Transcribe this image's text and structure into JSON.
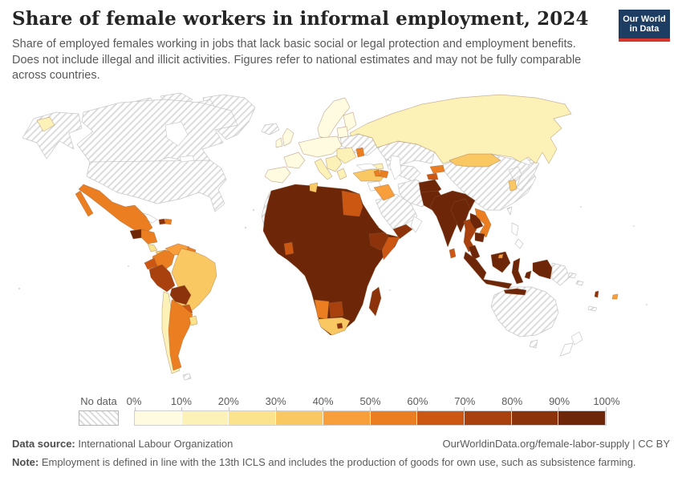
{
  "header": {
    "title": "Share of female workers in informal employment, 2024",
    "subtitle_lines": {
      "line1": "Share of employed females working in jobs that lack basic social or legal protection and employment benefits.",
      "line2": "Does not include illegal and illicit activities. Figures refer to national estimates and may not be fully comparable",
      "line3": "across countries."
    },
    "logo": {
      "line1": "Our World",
      "line2": "in Data",
      "bg": "#1d3d63",
      "accent": "#d7372c"
    }
  },
  "legend": {
    "no_data_label": "No data",
    "tick_labels": [
      "0%",
      "10%",
      "20%",
      "30%",
      "40%",
      "50%",
      "60%",
      "70%",
      "80%",
      "90%",
      "100%"
    ],
    "bin_colors": [
      "#FEFBE0",
      "#FCF2B7",
      "#FBE38D",
      "#FAC863",
      "#F89E3B",
      "#EA7E20",
      "#CC5713",
      "#A8410E",
      "#8C330B",
      "#6D2608"
    ]
  },
  "footer": {
    "source_label": "Data source:",
    "source_value": " International Labour Organization",
    "rights": "OurWorldinData.org/female-labor-supply | CC BY",
    "note_label": "Note:",
    "note_value": " Employment is defined in line with the 13th ICLS and includes the production of goods for own use, such as subsistence farming."
  },
  "map": {
    "ocean": "#ffffff",
    "country_border": "#8b5e3c",
    "no_data_border": "#c6c6c6",
    "water_border": "#cfcfcf",
    "hatch_line": "#dcdcdc",
    "regions": {
      "greenland": "no-data",
      "iceland": "no-data",
      "arctic-islands": "no-data",
      "alaska": "no-data",
      "canada": "no-data",
      "usa": "no-data",
      "ukraine-belarus": "no-data",
      "kazakhstan": "no-data",
      "central-asia": "no-data",
      "iran": "no-data",
      "saudi-arabia": "no-data",
      "china": "no-data",
      "japan": "no-data",
      "north-korea": "no-data",
      "taiwan": "no-data",
      "australia": "no-data",
      "tasmania": "no-data",
      "png": "no-data",
      "north-africa": "no-data",
      "south-sudan": "no-data",
      "eritrea": "no-data",
      "falklands": "no-data",
      "new-caledonia": "no-data",
      "solomon": "no-data",
      "new-zealand": "none",
      "philippines": "none",
      "cuba": "none",
      "syria": "none",
      "oman": "none",
      "suriname": "none",
      "caspian": "water",
      "black-sea": "water",
      "hudson-bay": "water",
      "great-lakes": "water",
      "chukotka": 2,
      "russia": 2,
      "scandinavia": 1,
      "finland": 1,
      "uk": 1,
      "ireland": 1,
      "iberia": 1,
      "france": 1,
      "central-europe": 1,
      "baltics": 1,
      "italy": 2,
      "balkans": 2,
      "romania-bulgaria": 2,
      "greece": 2,
      "georgia": 2,
      "moldova": 6,
      "turkey": 4,
      "armenia": 6,
      "azerbaijan": 6,
      "iraq": 5,
      "yemen": 9,
      "afghanistan": 10,
      "pakistan": 10,
      "india": 10,
      "sri-lanka": 7,
      "kyrgyzstan": 6,
      "tajikistan": 7,
      "mongolia": 4,
      "south-korea": 4,
      "myanmar": 10,
      "thailand": 8,
      "laos": 10,
      "vietnam": 6,
      "cambodia": 10,
      "malay-peninsula": 10,
      "sumatra": 10,
      "java": 10,
      "borneo": 10,
      "sulawesi": 10,
      "lesser-sunda": 10,
      "maluku": 10,
      "west-papua": 10,
      "brunei": 5,
      "mexico": 6,
      "guatemala": 10,
      "honduras-nicaragua": 6,
      "costa-rica": 3,
      "panama": 4,
      "haiti": 9,
      "dominican-republic": 6,
      "colombia": 6,
      "venezuela": 5,
      "guyana": 6,
      "ecuador": 7,
      "peru": 8,
      "brazil": 4,
      "bolivia": 9,
      "paraguay": 7,
      "chile": 2,
      "argentina": 6,
      "uruguay": 3,
      "africa": 10,
      "ghana": 7,
      "tunisia": 4,
      "egypt": 7,
      "ethiopia": 9,
      "somalia": 7,
      "namibia": 6,
      "botswana": 8,
      "south-africa": 4,
      "lesotho": 9,
      "madagascar": 9,
      "fiji": 5,
      "vanuatu": 9
    }
  },
  "chart_data": {
    "type": "choropleth_map",
    "title": "Share of female workers in informal employment, 2024",
    "unit": "%",
    "scale_min": 0,
    "scale_max": 100,
    "bins": [
      {
        "range": "0-10%",
        "color": "#FEFBE0"
      },
      {
        "range": "10-20%",
        "color": "#FCF2B7"
      },
      {
        "range": "20-30%",
        "color": "#FBE38D"
      },
      {
        "range": "30-40%",
        "color": "#FAC863"
      },
      {
        "range": "40-50%",
        "color": "#F89E3B"
      },
      {
        "range": "50-60%",
        "color": "#EA7E20"
      },
      {
        "range": "60-70%",
        "color": "#CC5713"
      },
      {
        "range": "70-80%",
        "color": "#A8410E"
      },
      {
        "range": "80-90%",
        "color": "#8C330B"
      },
      {
        "range": "90-100%",
        "color": "#6D2608"
      }
    ],
    "regions": {
      "Canada": "No data",
      "United States": "No data",
      "Greenland": "No data",
      "Iceland": "No data",
      "Ukraine": "No data",
      "Belarus": "No data",
      "Kazakhstan": "No data",
      "Uzbekistan": "No data",
      "Turkmenistan": "No data",
      "Iran": "No data",
      "Saudi Arabia": "No data",
      "China": "No data",
      "Japan": "No data",
      "North Korea": "No data",
      "Australia": "No data",
      "Papua New Guinea": "No data",
      "Morocco": "No data",
      "Algeria": "No data",
      "Libya": "No data",
      "South Sudan": "No data",
      "New Zealand": "No data",
      "Philippines": "No data",
      "Cuba": "No data",
      "Syria": "No data",
      "Oman": "No data",
      "United Kingdom": "0-10%",
      "Ireland": "0-10%",
      "France": "0-10%",
      "Spain": "0-10%",
      "Portugal": "0-10%",
      "Germany": "0-10%",
      "Norway": "0-10%",
      "Sweden": "0-10%",
      "Finland": "0-10%",
      "Poland": "0-10%",
      "Russia": "10-20%",
      "Italy": "10-20%",
      "Romania": "10-20%",
      "Bulgaria": "10-20%",
      "Greece": "10-20%",
      "Chile": "10-20%",
      "Georgia": "10-20%",
      "Costa Rica": "20-30%",
      "Uruguay": "20-30%",
      "Brazil": "30-40%",
      "Turkey": "30-40%",
      "Mongolia": "30-40%",
      "South Korea": "30-40%",
      "South Africa": "30-40%",
      "Tunisia": "30-40%",
      "Panama": "30-40%",
      "Venezuela": "40-50%",
      "Iraq": "40-50%",
      "Fiji": "40-50%",
      "Brunei": "40-50%",
      "Mexico": "50-60%",
      "Argentina": "50-60%",
      "Colombia": "50-60%",
      "Guyana": "50-60%",
      "Armenia": "50-60%",
      "Azerbaijan": "50-60%",
      "Kyrgyzstan": "50-60%",
      "Vietnam": "50-60%",
      "Namibia": "50-60%",
      "Moldova": "50-60%",
      "Dominican Republic": "50-60%",
      "Honduras": "50-60%",
      "Nicaragua": "50-60%",
      "Ecuador": "60-70%",
      "Paraguay": "60-70%",
      "Egypt": "60-70%",
      "Somalia": "60-70%",
      "Ghana": "60-70%",
      "Sri Lanka": "60-70%",
      "Tajikistan": "60-70%",
      "Peru": "70-80%",
      "Thailand": "70-80%",
      "Botswana": "70-80%",
      "Bolivia": "80-90%",
      "Ethiopia": "80-90%",
      "Madagascar": "80-90%",
      "Lesotho": "80-90%",
      "Yemen": "80-90%",
      "Haiti": "80-90%",
      "Vanuatu": "80-90%",
      "India": "90-100%",
      "Pakistan": "90-100%",
      "Afghanistan": "90-100%",
      "Bangladesh": "90-100%",
      "Nepal": "90-100%",
      "Myanmar": "90-100%",
      "Laos": "90-100%",
      "Cambodia": "90-100%",
      "Indonesia": "90-100%",
      "Malaysia": "90-100%",
      "Guatemala": "90-100%",
      "Nigeria": "90-100%",
      "Mali": "90-100%",
      "Niger": "90-100%",
      "Chad": "90-100%",
      "Sudan": "90-100%",
      "Democratic Republic of Congo": "90-100%",
      "Tanzania": "90-100%",
      "Kenya": "90-100%",
      "Mozambique": "90-100%",
      "Zambia": "90-100%",
      "Zimbabwe": "90-100%",
      "Angola": "90-100%",
      "Senegal": "90-100%",
      "Guinea": "90-100%",
      "Cameroon": "90-100%",
      "Uganda": "90-100%"
    }
  }
}
